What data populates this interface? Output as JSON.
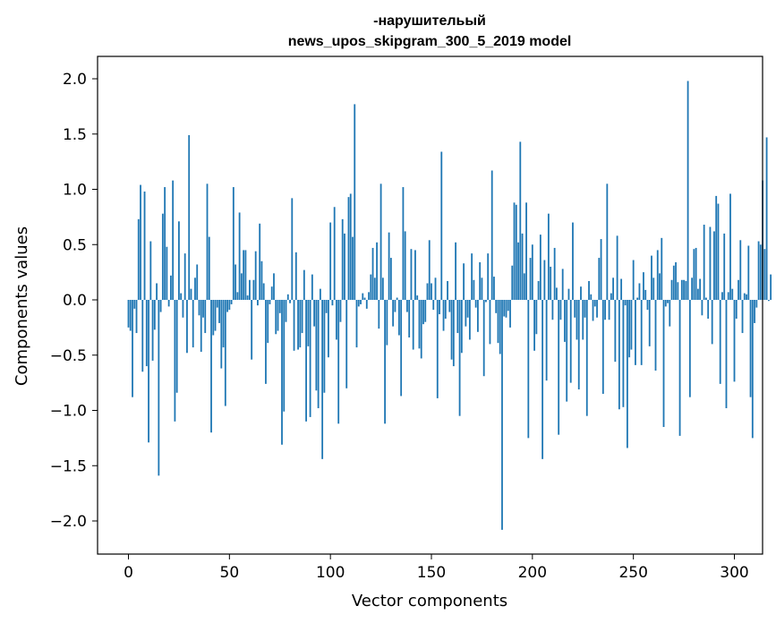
{
  "chart_data": {
    "type": "bar",
    "title_line1": "-нарушительый",
    "title_line2": "news_upos_skipgram_300_5_2019 model",
    "xlabel": "Vector components",
    "ylabel": "Components values",
    "xlim": [
      -15,
      315
    ],
    "ylim": [
      -2.3,
      2.2
    ],
    "x_ticks": [
      0,
      50,
      100,
      150,
      200,
      250,
      300
    ],
    "x_tick_labels": [
      "0",
      "50",
      "100",
      "150",
      "200",
      "250",
      "300"
    ],
    "y_ticks": [
      2.0,
      1.5,
      1.0,
      0.5,
      0.0,
      -0.5,
      -1.0,
      -1.5,
      -2.0
    ],
    "y_tick_labels": [
      "2.0",
      "1.5",
      "1.0",
      "0.5",
      "0.0",
      "−0.5",
      "−1.0",
      "−1.5",
      "−2.0"
    ],
    "bar_color": "#1f77b4",
    "grid": false,
    "values": [
      -0.25,
      -0.28,
      -0.88,
      -0.08,
      -0.3,
      0.73,
      1.04,
      -0.65,
      0.98,
      -0.6,
      -1.29,
      0.53,
      -0.55,
      -0.27,
      0.15,
      -1.59,
      -0.11,
      0.78,
      1.02,
      0.48,
      -0.06,
      0.22,
      1.08,
      -1.1,
      -0.84,
      0.71,
      0.06,
      -0.16,
      0.42,
      -0.48,
      1.49,
      0.1,
      -0.43,
      0.2,
      0.32,
      -0.14,
      -0.47,
      -0.16,
      -0.3,
      1.05,
      0.57,
      -1.2,
      -0.32,
      -0.28,
      -0.07,
      -0.21,
      -0.62,
      -0.43,
      -0.96,
      -0.11,
      -0.09,
      -0.04,
      1.02,
      0.32,
      0.07,
      0.79,
      0.24,
      0.45,
      0.45,
      0.04,
      0.18,
      -0.54,
      0.18,
      0.44,
      -0.05,
      0.69,
      0.35,
      0.15,
      -0.76,
      -0.39,
      -0.04,
      0.12,
      0.24,
      -0.31,
      -0.28,
      -0.12,
      -1.31,
      -1.01,
      -0.2,
      0.05,
      -0.03,
      0.92,
      -0.46,
      0.43,
      -0.45,
      -0.43,
      -0.3,
      0.27,
      -1.1,
      -0.42,
      -1.06,
      0.23,
      -0.24,
      -0.82,
      -0.98,
      0.1,
      -1.44,
      -0.84,
      -0.12,
      -0.52,
      0.7,
      -0.05,
      0.84,
      -0.36,
      -1.12,
      -0.2,
      0.73,
      0.6,
      -0.8,
      0.93,
      0.96,
      0.57,
      1.77,
      -0.43,
      -0.06,
      -0.04,
      0.06,
      0.02,
      -0.08,
      0.07,
      0.23,
      0.47,
      0.2,
      0.52,
      -0.26,
      1.05,
      0.2,
      -1.12,
      -0.41,
      0.61,
      0.38,
      -0.24,
      -0.11,
      0.02,
      -0.32,
      -0.87,
      1.02,
      0.62,
      -0.11,
      -0.34,
      0.46,
      -0.45,
      0.45,
      0.04,
      -0.44,
      -0.53,
      -0.22,
      -0.2,
      0.15,
      0.54,
      0.15,
      -0.09,
      0.2,
      -0.89,
      -0.13,
      1.34,
      -0.28,
      -0.17,
      0.17,
      -0.11,
      -0.54,
      -0.6,
      0.52,
      -0.3,
      -1.05,
      -0.48,
      0.33,
      -0.24,
      -0.16,
      -0.36,
      0.42,
      0.18,
      -0.07,
      -0.29,
      0.34,
      0.2,
      -0.69,
      -0.02,
      0.42,
      -0.4,
      1.17,
      0.21,
      -0.12,
      -0.39,
      -0.49,
      -2.08,
      -0.15,
      -0.16,
      -0.1,
      -0.25,
      0.31,
      0.88,
      0.86,
      0.52,
      1.43,
      0.6,
      0.24,
      0.88,
      -1.25,
      0.38,
      0.5,
      -0.46,
      -0.31,
      0.17,
      0.59,
      -1.44,
      0.36,
      -0.73,
      0.78,
      0.3,
      -0.18,
      0.47,
      0.11,
      -1.22,
      -0.18,
      0.28,
      -0.38,
      -0.92,
      0.1,
      -0.75,
      0.7,
      -0.16,
      -0.36,
      -0.81,
      0.12,
      -0.36,
      -0.16,
      -1.05,
      0.17,
      0.05,
      -0.19,
      -0.06,
      -0.16,
      0.38,
      0.55,
      -0.85,
      -0.18,
      1.05,
      -0.18,
      0.06,
      0.2,
      -0.56,
      0.58,
      -0.99,
      0.19,
      -0.97,
      -0.05,
      -1.34,
      -0.52,
      -0.45,
      0.36,
      -0.59,
      0.02,
      0.15,
      -0.59,
      0.25,
      0.09,
      -0.09,
      -0.42,
      0.4,
      0.2,
      -0.64,
      0.45,
      0.24,
      0.56,
      -1.15,
      -0.06,
      -0.03,
      -0.24,
      0.18,
      0.31,
      0.34,
      0.16,
      -1.23,
      0.18,
      0.18,
      0.17,
      1.98,
      -0.88,
      0.2,
      0.46,
      0.47,
      0.1,
      0.19,
      -0.14,
      0.68,
      0.02,
      -0.17,
      0.66,
      -0.4,
      0.62,
      0.94,
      0.87,
      -0.76,
      0.07,
      0.6,
      -0.98,
      0.07,
      0.96,
      0.1,
      -0.74,
      -0.17,
      0.18,
      0.54,
      -0.3,
      0.06,
      0.05,
      0.49,
      -0.88,
      -1.25,
      -0.21,
      -0.07,
      0.53,
      0.5,
      1.08,
      0.46,
      1.47,
      -0.01,
      0.23
    ]
  }
}
